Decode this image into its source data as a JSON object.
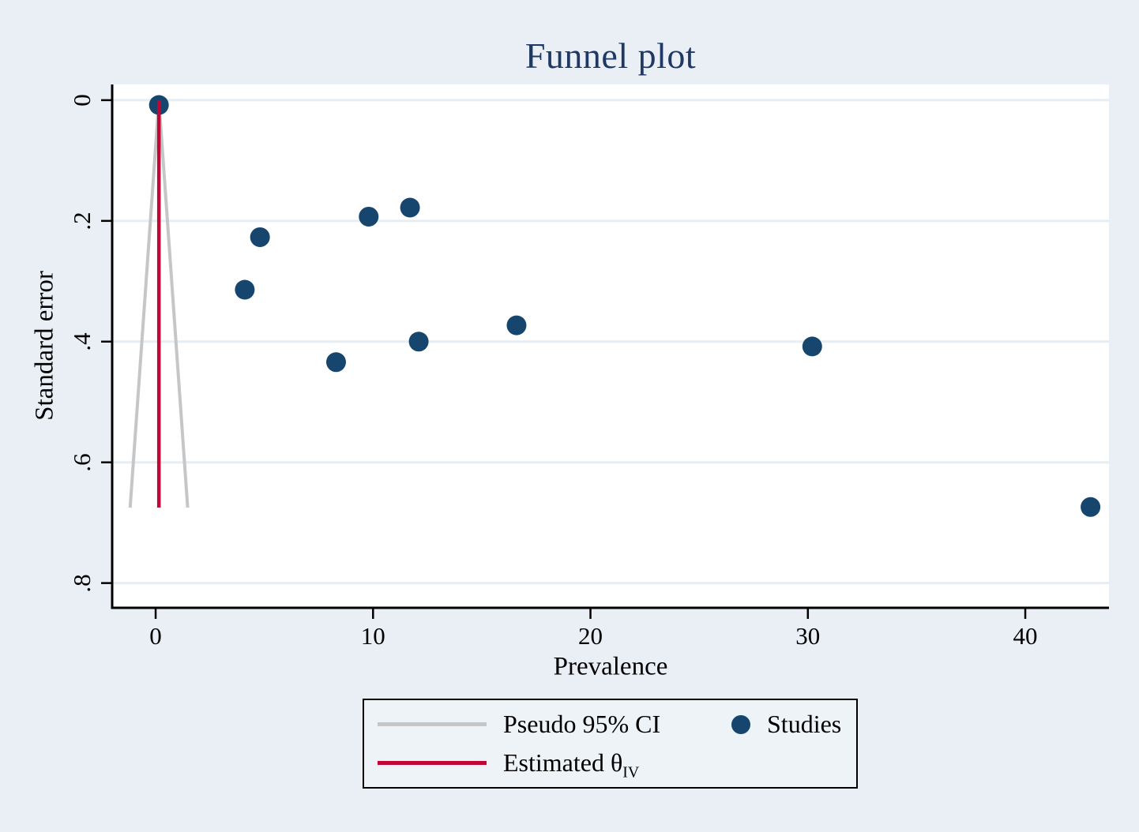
{
  "title": "Funnel plot",
  "colors": {
    "background": "#e9eff5",
    "plot_background": "#ffffff",
    "gridline": "#e7eef3",
    "axis": "#000000",
    "studies_navy": "#16466e",
    "estimate_red": "#c10535",
    "pseudo_ci_gray": "#c6c6c6",
    "title_navy": "#1f3864",
    "legend_background": "#eef3f8"
  },
  "legend": {
    "items": [
      {
        "name": "pseudo-ci",
        "label": "Pseudo 95% CI",
        "swatch": "line",
        "color": "#c6c6c6"
      },
      {
        "name": "studies",
        "label": "Studies",
        "swatch": "dot",
        "color": "#16466e"
      },
      {
        "name": "estimated-theta",
        "label_main": "Estimated θ",
        "label_sub": "IV",
        "swatch": "line",
        "color": "#c10535"
      }
    ]
  },
  "chart_data": {
    "type": "scatter",
    "title": "Funnel plot",
    "xlabel": "Prevalence",
    "ylabel": "Standard error",
    "xlim": [
      -2,
      43.85
    ],
    "ylim": [
      -0.026,
      0.841
    ],
    "y_reversed": true,
    "grid": "horizontal-only",
    "legend_position": "bottom-outside",
    "x_ticks": {
      "values": [
        0,
        10,
        20,
        30,
        40
      ],
      "labels": [
        "0",
        "10",
        "20",
        "30",
        "40"
      ]
    },
    "y_ticks": {
      "values": [
        0,
        0.2,
        0.4,
        0.6,
        0.8
      ],
      "labels": [
        "0",
        ".2",
        ".4",
        ".6",
        ".8"
      ]
    },
    "series": [
      {
        "name": "Studies",
        "type": "scatter",
        "color": "#16466e",
        "marker": "circle",
        "points": [
          {
            "x": 0.15,
            "se": 0.008
          },
          {
            "x": 4.1,
            "se": 0.314
          },
          {
            "x": 4.8,
            "se": 0.227
          },
          {
            "x": 8.3,
            "se": 0.434
          },
          {
            "x": 9.8,
            "se": 0.193
          },
          {
            "x": 11.7,
            "se": 0.178
          },
          {
            "x": 12.1,
            "se": 0.4
          },
          {
            "x": 16.6,
            "se": 0.373
          },
          {
            "x": 30.2,
            "se": 0.408
          },
          {
            "x": 43.0,
            "se": 0.674
          }
        ]
      },
      {
        "name": "Pseudo 95% CI",
        "type": "funnel",
        "color": "#c6c6c6",
        "apex_x": 0.15,
        "se_from": 0,
        "se_to": 0.675,
        "z": 1.96
      },
      {
        "name": "Estimated θIV",
        "type": "vline",
        "color": "#c10535",
        "x": 0.15,
        "se_from": 0,
        "se_to": 0.675
      }
    ]
  }
}
